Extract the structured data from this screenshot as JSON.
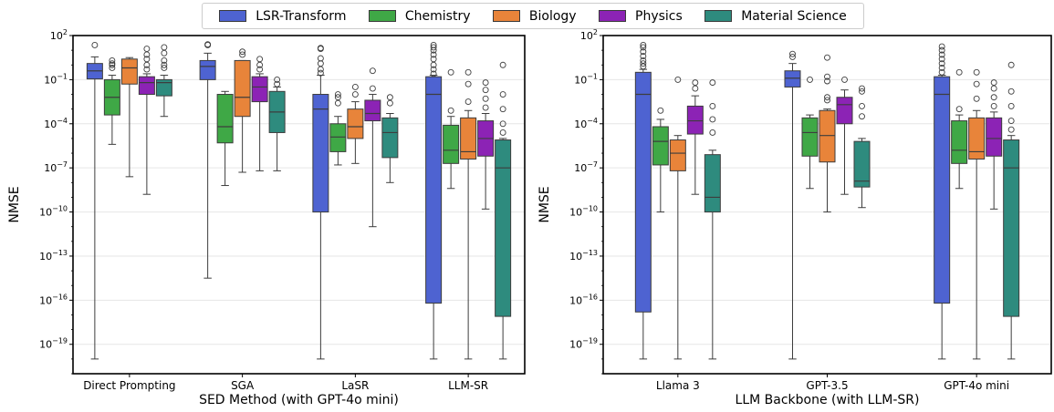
{
  "legend": [
    {
      "label": "LSR-Transform",
      "color": "#4E63D1"
    },
    {
      "label": "Chemistry",
      "color": "#3FA846"
    },
    {
      "label": "Biology",
      "color": "#E8843A"
    },
    {
      "label": "Physics",
      "color": "#8C23B5"
    },
    {
      "label": "Material Science",
      "color": "#2E8B7E"
    }
  ],
  "chart_data": [
    {
      "type": "box",
      "title": "",
      "xlabel": "SED Method (with GPT-4o mini)",
      "ylabel": "NMSE",
      "yscale": "log",
      "ylim_exp": [
        -21,
        2
      ],
      "ytick_labels": [
        "10^{-19}",
        "10^{-16}",
        "10^{-13}",
        "10^{-10}",
        "10^{-7}",
        "10^{-4}",
        "10^{-1}",
        "10^{2}"
      ],
      "grid": "horizontal",
      "categories": [
        "Direct Prompting",
        "SGA",
        "LaSR",
        "LLM-SR"
      ],
      "series": [
        {
          "name": "LSR-Transform",
          "groups": [
            {
              "category": "Direct Prompting",
              "whisker_low_exp": -20,
              "q1_exp": -0.95,
              "median_exp": -0.4,
              "q3_exp": 0.1,
              "whisker_high_exp": 0.55,
              "outliers_exp": [
                1.35
              ]
            },
            {
              "category": "SGA",
              "whisker_low_exp": -14.5,
              "q1_exp": -1.0,
              "median_exp": -0.1,
              "q3_exp": 0.3,
              "whisker_high_exp": 0.8,
              "outliers_exp": [
                1.4,
                1.35
              ]
            },
            {
              "category": "LaSR",
              "whisker_low_exp": -20,
              "q1_exp": -10,
              "median_exp": -3.0,
              "q3_exp": -2.0,
              "whisker_high_exp": -0.7,
              "outliers_exp": [
                -0.55,
                -0.3,
                0.1,
                0.45,
                1.1,
                1.15
              ]
            },
            {
              "category": "LLM-SR",
              "whisker_low_exp": -20,
              "q1_exp": -16.2,
              "median_exp": -2.0,
              "q3_exp": -0.8,
              "whisker_high_exp": -0.7,
              "outliers_exp": [
                -0.6,
                -0.3,
                0.0,
                0.4,
                0.7,
                1.0,
                1.2,
                1.35
              ]
            }
          ]
        },
        {
          "name": "Chemistry",
          "groups": [
            {
              "category": "Direct Prompting",
              "whisker_low_exp": -5.4,
              "q1_exp": -3.4,
              "median_exp": -2.2,
              "q3_exp": -1.0,
              "whisker_high_exp": -0.7,
              "outliers_exp": [
                -0.2,
                0.0,
                0.1,
                0.3
              ]
            },
            {
              "category": "SGA",
              "whisker_low_exp": -8.2,
              "q1_exp": -5.3,
              "median_exp": -4.2,
              "q3_exp": -2.0,
              "whisker_high_exp": -1.8,
              "outliers_exp": []
            },
            {
              "category": "LaSR",
              "whisker_low_exp": -6.8,
              "q1_exp": -5.9,
              "median_exp": -4.9,
              "q3_exp": -4.0,
              "whisker_high_exp": -3.5,
              "outliers_exp": [
                -2.6,
                -2.2,
                -2.0
              ]
            },
            {
              "category": "LLM-SR",
              "whisker_low_exp": -8.4,
              "q1_exp": -6.7,
              "median_exp": -5.8,
              "q3_exp": -4.1,
              "whisker_high_exp": -3.5,
              "outliers_exp": [
                -3.1,
                -0.5
              ]
            }
          ]
        },
        {
          "name": "Biology",
          "groups": [
            {
              "category": "Direct Prompting",
              "whisker_low_exp": -7.6,
              "q1_exp": -1.3,
              "median_exp": -0.2,
              "q3_exp": 0.4,
              "whisker_high_exp": 0.5,
              "outliers_exp": []
            },
            {
              "category": "SGA",
              "whisker_low_exp": -7.3,
              "q1_exp": -3.5,
              "median_exp": -2.2,
              "q3_exp": 0.3,
              "whisker_high_exp": 0.3,
              "outliers_exp": [
                0.7,
                0.9
              ]
            },
            {
              "category": "LaSR",
              "whisker_low_exp": -6.7,
              "q1_exp": -5.0,
              "median_exp": -4.2,
              "q3_exp": -3.0,
              "whisker_high_exp": -2.5,
              "outliers_exp": [
                -2.0,
                -1.5
              ]
            },
            {
              "category": "LLM-SR",
              "whisker_low_exp": -20,
              "q1_exp": -6.4,
              "median_exp": -5.9,
              "q3_exp": -3.6,
              "whisker_high_exp": -3.1,
              "outliers_exp": [
                -2.5,
                -1.3,
                -0.5
              ]
            }
          ]
        },
        {
          "name": "Physics",
          "groups": [
            {
              "category": "Direct Prompting",
              "whisker_low_exp": -8.8,
              "q1_exp": -2.0,
              "median_exp": -1.2,
              "q3_exp": -0.8,
              "whisker_high_exp": -0.6,
              "outliers_exp": [
                -0.3,
                0.0,
                0.4,
                0.7,
                1.1
              ]
            },
            {
              "category": "SGA",
              "whisker_low_exp": -7.2,
              "q1_exp": -2.5,
              "median_exp": -1.5,
              "q3_exp": -0.8,
              "whisker_high_exp": -0.6,
              "outliers_exp": [
                -0.3,
                0.0,
                0.4
              ]
            },
            {
              "category": "LaSR",
              "whisker_low_exp": -11.0,
              "q1_exp": -3.8,
              "median_exp": -3.3,
              "q3_exp": -2.4,
              "whisker_high_exp": -2.0,
              "outliers_exp": [
                -1.6,
                -0.4
              ]
            },
            {
              "category": "LLM-SR",
              "whisker_low_exp": -9.8,
              "q1_exp": -6.2,
              "median_exp": -5.0,
              "q3_exp": -3.8,
              "whisker_high_exp": -3.3,
              "outliers_exp": [
                -2.9,
                -2.3,
                -1.7,
                -1.2
              ]
            }
          ]
        },
        {
          "name": "Material Science",
          "groups": [
            {
              "category": "Direct Prompting",
              "whisker_low_exp": -3.5,
              "q1_exp": -2.1,
              "median_exp": -1.2,
              "q3_exp": -1.0,
              "whisker_high_exp": -0.7,
              "outliers_exp": [
                -0.2,
                0.0,
                0.3,
                0.8,
                1.2
              ]
            },
            {
              "category": "SGA",
              "whisker_low_exp": -7.2,
              "q1_exp": -4.6,
              "median_exp": -3.2,
              "q3_exp": -1.8,
              "whisker_high_exp": -1.5,
              "outliers_exp": [
                -1.3,
                -1.0
              ]
            },
            {
              "category": "LaSR",
              "whisker_low_exp": -8.0,
              "q1_exp": -6.3,
              "median_exp": -4.6,
              "q3_exp": -3.6,
              "whisker_high_exp": -3.3,
              "outliers_exp": [
                -2.6,
                -2.2
              ]
            },
            {
              "category": "LLM-SR",
              "whisker_low_exp": -20,
              "q1_exp": -17.1,
              "median_exp": -7.0,
              "q3_exp": -5.1,
              "whisker_high_exp": -5.0,
              "outliers_exp": [
                -4.6,
                -4.0,
                -3.0,
                -2.0,
                0.0
              ]
            }
          ]
        }
      ]
    },
    {
      "type": "box",
      "title": "",
      "xlabel": "LLM Backbone (with LLM-SR)",
      "ylabel": "NMSE",
      "yscale": "log",
      "ylim_exp": [
        -21,
        2
      ],
      "ytick_labels": [
        "10^{-19}",
        "10^{-16}",
        "10^{-13}",
        "10^{-10}",
        "10^{-7}",
        "10^{-4}",
        "10^{-1}",
        "10^{2}"
      ],
      "grid": "horizontal",
      "categories": [
        "Llama 3",
        "GPT-3.5",
        "GPT-4o mini"
      ],
      "series": [
        {
          "name": "LSR-Transform",
          "groups": [
            {
              "category": "Llama 3",
              "whisker_low_exp": -20,
              "q1_exp": -16.8,
              "median_exp": -2.0,
              "q3_exp": -0.5,
              "whisker_high_exp": -0.3,
              "outliers_exp": [
                -0.1,
                0.1,
                0.3,
                0.6,
                0.9,
                1.2,
                1.35
              ]
            },
            {
              "category": "GPT-3.5",
              "whisker_low_exp": -20,
              "q1_exp": -1.5,
              "median_exp": -0.9,
              "q3_exp": -0.4,
              "whisker_high_exp": 0.1,
              "outliers_exp": [
                0.55,
                0.75
              ]
            },
            {
              "category": "GPT-4o mini",
              "whisker_low_exp": -20,
              "q1_exp": -16.2,
              "median_exp": -2.0,
              "q3_exp": -0.8,
              "whisker_high_exp": -0.7,
              "outliers_exp": [
                -0.5,
                -0.2,
                0.1,
                0.4,
                0.7,
                1.0,
                1.25
              ]
            }
          ]
        },
        {
          "name": "Chemistry",
          "groups": [
            {
              "category": "Llama 3",
              "whisker_low_exp": -10,
              "q1_exp": -6.8,
              "median_exp": -5.2,
              "q3_exp": -4.2,
              "whisker_high_exp": -3.7,
              "outliers_exp": [
                -3.1
              ]
            },
            {
              "category": "GPT-3.5",
              "whisker_low_exp": -8.4,
              "q1_exp": -6.2,
              "median_exp": -4.6,
              "q3_exp": -3.6,
              "whisker_high_exp": -3.4,
              "outliers_exp": [
                -1.0
              ]
            },
            {
              "category": "GPT-4o mini",
              "whisker_low_exp": -8.4,
              "q1_exp": -6.7,
              "median_exp": -5.8,
              "q3_exp": -3.8,
              "whisker_high_exp": -3.4,
              "outliers_exp": [
                -3.0,
                -0.5
              ]
            }
          ]
        },
        {
          "name": "Biology",
          "groups": [
            {
              "category": "Llama 3",
              "whisker_low_exp": -20,
              "q1_exp": -7.2,
              "median_exp": -6.0,
              "q3_exp": -5.1,
              "whisker_high_exp": -4.8,
              "outliers_exp": [
                -1.0
              ]
            },
            {
              "category": "GPT-3.5",
              "whisker_low_exp": -10,
              "q1_exp": -6.6,
              "median_exp": -4.8,
              "q3_exp": -3.1,
              "whisker_high_exp": -3.0,
              "outliers_exp": [
                -2.4,
                -2.2,
                -1.1,
                -0.8,
                0.5
              ]
            },
            {
              "category": "GPT-4o mini",
              "whisker_low_exp": -20,
              "q1_exp": -6.4,
              "median_exp": -5.9,
              "q3_exp": -3.6,
              "whisker_high_exp": -3.1,
              "outliers_exp": [
                -2.3,
                -1.3,
                -0.5
              ]
            }
          ]
        },
        {
          "name": "Physics",
          "groups": [
            {
              "category": "Llama 3",
              "whisker_low_exp": -8.8,
              "q1_exp": -4.7,
              "median_exp": -3.8,
              "q3_exp": -2.8,
              "whisker_high_exp": -2.1,
              "outliers_exp": [
                -1.6,
                -1.2
              ]
            },
            {
              "category": "GPT-3.5",
              "whisker_low_exp": -8.8,
              "q1_exp": -4.0,
              "median_exp": -2.7,
              "q3_exp": -2.2,
              "whisker_high_exp": -1.7,
              "outliers_exp": [
                -1.0
              ]
            },
            {
              "category": "GPT-4o mini",
              "whisker_low_exp": -9.8,
              "q1_exp": -6.2,
              "median_exp": -5.0,
              "q3_exp": -3.6,
              "whisker_high_exp": -3.2,
              "outliers_exp": [
                -2.8,
                -2.2,
                -1.6,
                -1.2
              ]
            }
          ]
        },
        {
          "name": "Material Science",
          "groups": [
            {
              "category": "Llama 3",
              "whisker_low_exp": -20,
              "q1_exp": -10,
              "median_exp": -9.0,
              "q3_exp": -6.1,
              "whisker_high_exp": -5.8,
              "outliers_exp": [
                -4.6,
                -3.7,
                -2.8,
                -1.2
              ]
            },
            {
              "category": "GPT-3.5",
              "whisker_low_exp": -9.7,
              "q1_exp": -8.3,
              "median_exp": -7.9,
              "q3_exp": -5.2,
              "whisker_high_exp": -5.0,
              "outliers_exp": [
                -3.5,
                -2.8,
                -1.8,
                -1.6
              ]
            },
            {
              "category": "GPT-4o mini",
              "whisker_low_exp": -20,
              "q1_exp": -17.1,
              "median_exp": -7.0,
              "q3_exp": -5.1,
              "whisker_high_exp": -4.8,
              "outliers_exp": [
                -4.4,
                -3.8,
                -2.8,
                -1.8,
                0.0
              ]
            }
          ]
        }
      ]
    }
  ]
}
